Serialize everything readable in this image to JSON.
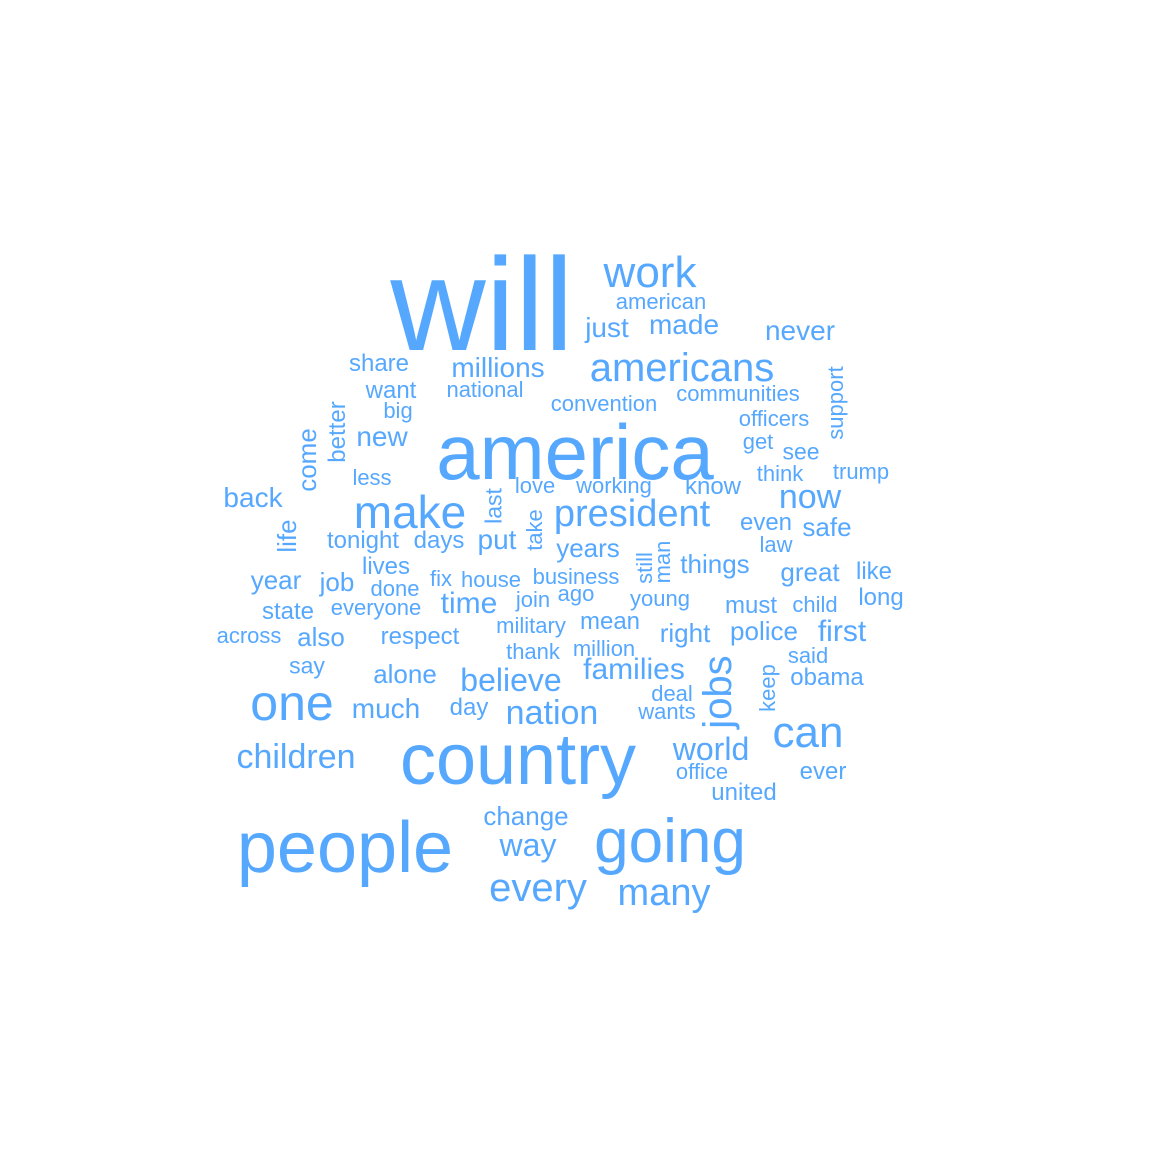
{
  "color": "#56a8ff",
  "words": [
    {
      "text": "will",
      "weight": 100
    },
    {
      "text": "america",
      "weight": 86
    },
    {
      "text": "country",
      "weight": 80
    },
    {
      "text": "people",
      "weight": 78
    },
    {
      "text": "going",
      "weight": 62
    },
    {
      "text": "one",
      "weight": 55
    },
    {
      "text": "make",
      "weight": 46
    },
    {
      "text": "can",
      "weight": 44
    },
    {
      "text": "work",
      "weight": 43
    },
    {
      "text": "jobs",
      "weight": 42
    },
    {
      "text": "every",
      "weight": 40
    },
    {
      "text": "americans",
      "weight": 40
    },
    {
      "text": "president",
      "weight": 38
    },
    {
      "text": "many",
      "weight": 38
    },
    {
      "text": "nation",
      "weight": 34
    },
    {
      "text": "children",
      "weight": 34
    },
    {
      "text": "now",
      "weight": 34
    },
    {
      "text": "believe",
      "weight": 32
    },
    {
      "text": "world",
      "weight": 31
    },
    {
      "text": "families",
      "weight": 31
    },
    {
      "text": "way",
      "weight": 31
    },
    {
      "text": "time",
      "weight": 30
    },
    {
      "text": "first",
      "weight": 30
    },
    {
      "text": "millions",
      "weight": 29
    },
    {
      "text": "just",
      "weight": 29
    },
    {
      "text": "made",
      "weight": 28
    },
    {
      "text": "never",
      "weight": 28
    },
    {
      "text": "much",
      "weight": 28
    },
    {
      "text": "back",
      "weight": 28
    },
    {
      "text": "put",
      "weight": 28
    },
    {
      "text": "new",
      "weight": 28
    },
    {
      "text": "years",
      "weight": 26
    },
    {
      "text": "things",
      "weight": 26
    },
    {
      "text": "alone",
      "weight": 26
    },
    {
      "text": "change",
      "weight": 26
    },
    {
      "text": "right",
      "weight": 26
    },
    {
      "text": "police",
      "weight": 26
    },
    {
      "text": "also",
      "weight": 26
    },
    {
      "text": "great",
      "weight": 26
    },
    {
      "text": "safe",
      "weight": 26
    },
    {
      "text": "come",
      "weight": 26
    },
    {
      "text": "year",
      "weight": 26
    },
    {
      "text": "life",
      "weight": 26
    },
    {
      "text": "job",
      "weight": 25
    },
    {
      "text": "long",
      "weight": 24
    },
    {
      "text": "respect",
      "weight": 24
    },
    {
      "text": "obama",
      "weight": 24
    },
    {
      "text": "ever",
      "weight": 24
    },
    {
      "text": "better",
      "weight": 24
    },
    {
      "text": "want",
      "weight": 24
    },
    {
      "text": "share",
      "weight": 24
    },
    {
      "text": "state",
      "weight": 24
    },
    {
      "text": "day",
      "weight": 24
    },
    {
      "text": "know",
      "weight": 24
    },
    {
      "text": "mean",
      "weight": 24
    },
    {
      "text": "united",
      "weight": 24
    },
    {
      "text": "must",
      "weight": 24
    },
    {
      "text": "like",
      "weight": 24
    },
    {
      "text": "lives",
      "weight": 24
    },
    {
      "text": "tonight",
      "weight": 24
    },
    {
      "text": "days",
      "weight": 24
    },
    {
      "text": "even",
      "weight": 24
    },
    {
      "text": "last",
      "weight": 23
    },
    {
      "text": "say",
      "weight": 23
    },
    {
      "text": "see",
      "weight": 23
    },
    {
      "text": "officers",
      "weight": 22
    },
    {
      "text": "communities",
      "weight": 22
    },
    {
      "text": "convention",
      "weight": 22
    },
    {
      "text": "national",
      "weight": 22
    },
    {
      "text": "big",
      "weight": 22
    },
    {
      "text": "american",
      "weight": 22
    },
    {
      "text": "support",
      "weight": 22
    },
    {
      "text": "trump",
      "weight": 22
    },
    {
      "text": "think",
      "weight": 22
    },
    {
      "text": "get",
      "weight": 22
    },
    {
      "text": "less",
      "weight": 22
    },
    {
      "text": "love",
      "weight": 22
    },
    {
      "text": "working",
      "weight": 22
    },
    {
      "text": "law",
      "weight": 22
    },
    {
      "text": "take",
      "weight": 22
    },
    {
      "text": "house",
      "weight": 22
    },
    {
      "text": "fix",
      "weight": 22
    },
    {
      "text": "business",
      "weight": 22
    },
    {
      "text": "still",
      "weight": 22
    },
    {
      "text": "man",
      "weight": 22
    },
    {
      "text": "done",
      "weight": 22
    },
    {
      "text": "everyone",
      "weight": 22
    },
    {
      "text": "join",
      "weight": 22
    },
    {
      "text": "ago",
      "weight": 22
    },
    {
      "text": "young",
      "weight": 22
    },
    {
      "text": "child",
      "weight": 22
    },
    {
      "text": "across",
      "weight": 22
    },
    {
      "text": "military",
      "weight": 22
    },
    {
      "text": "thank",
      "weight": 22
    },
    {
      "text": "million",
      "weight": 22
    },
    {
      "text": "said",
      "weight": 22
    },
    {
      "text": "deal",
      "weight": 22
    },
    {
      "text": "keep",
      "weight": 22
    },
    {
      "text": "wants",
      "weight": 22
    },
    {
      "text": "office",
      "weight": 22
    }
  ]
}
